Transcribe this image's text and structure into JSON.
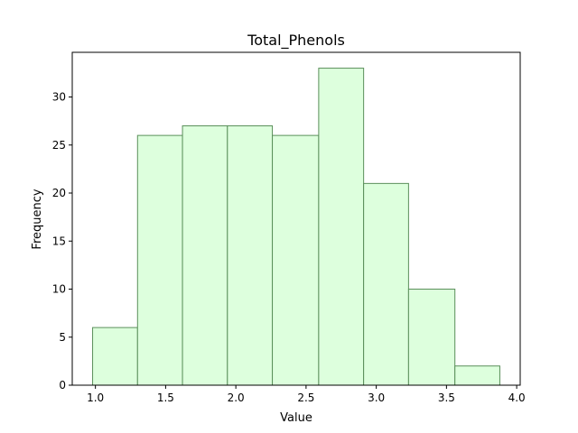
{
  "chart_data": {
    "type": "bar",
    "title": "Total_Phenols",
    "xlabel": "Value",
    "ylabel": "Frequency",
    "bins": [
      {
        "start": 0.98,
        "end": 1.3,
        "count": 6
      },
      {
        "start": 1.3,
        "end": 1.62,
        "count": 26
      },
      {
        "start": 1.62,
        "end": 1.94,
        "count": 27
      },
      {
        "start": 1.94,
        "end": 2.26,
        "count": 27
      },
      {
        "start": 2.26,
        "end": 2.59,
        "count": 26
      },
      {
        "start": 2.59,
        "end": 2.91,
        "count": 33
      },
      {
        "start": 2.91,
        "end": 3.23,
        "count": 21
      },
      {
        "start": 3.23,
        "end": 3.56,
        "count": 10
      },
      {
        "start": 3.56,
        "end": 3.88,
        "count": 2
      }
    ],
    "xlim": [
      0.835,
      4.025
    ],
    "ylim": [
      0,
      34.65
    ],
    "xticks": [
      {
        "value": 1.0,
        "label": "1.0"
      },
      {
        "value": 1.5,
        "label": "1.5"
      },
      {
        "value": 2.0,
        "label": "2.0"
      },
      {
        "value": 2.5,
        "label": "2.5"
      },
      {
        "value": 3.0,
        "label": "3.0"
      },
      {
        "value": 3.5,
        "label": "3.5"
      },
      {
        "value": 4.0,
        "label": "4.0"
      }
    ],
    "yticks": [
      {
        "value": 0,
        "label": "0"
      },
      {
        "value": 5,
        "label": "5"
      },
      {
        "value": 10,
        "label": "10"
      },
      {
        "value": 15,
        "label": "15"
      },
      {
        "value": 20,
        "label": "20"
      },
      {
        "value": 25,
        "label": "25"
      },
      {
        "value": 30,
        "label": "30"
      }
    ],
    "grid": false,
    "colors": {
      "bar_fill": "#ddffdd",
      "bar_edge": "#5a8f5a"
    }
  }
}
